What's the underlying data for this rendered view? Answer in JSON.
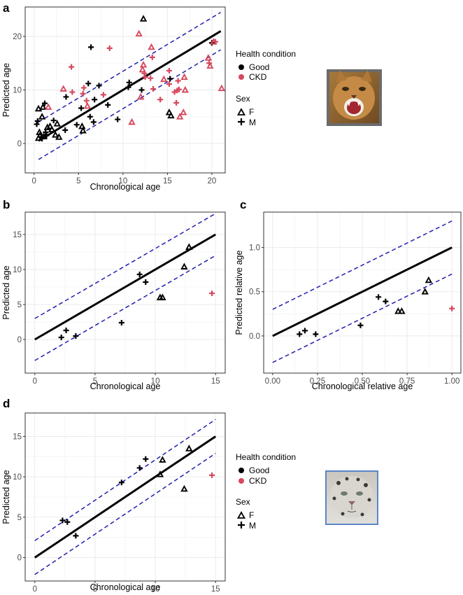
{
  "colors": {
    "good": "#000000",
    "ckd": "#d6495e",
    "band": "#1f1fb0",
    "fit": "#000000",
    "grid": "#ebebeb",
    "frame": "#333333"
  },
  "legend": {
    "health_title": "Health condition",
    "health_items": [
      "Good",
      "CKD"
    ],
    "sex_title": "Sex",
    "sex_items": [
      "F",
      "M"
    ]
  },
  "images": [
    {
      "name": "cat-photo",
      "border": "#6b6b6b"
    },
    {
      "name": "snow-leopard-photo",
      "border": "#5a86c8"
    }
  ],
  "chart_data": [
    {
      "panel": "a",
      "type": "scatter",
      "xlabel": "Chronological age",
      "ylabel": "Predicted age",
      "xlim": [
        -1,
        21.5
      ],
      "ylim": [
        -5.5,
        25.5
      ],
      "xticks": [
        0,
        5,
        10,
        15,
        20
      ],
      "xticklabels": [
        "0",
        "5",
        "10",
        "15",
        "20"
      ],
      "yticks": [
        0,
        10,
        20
      ],
      "yticklabels": [
        "0",
        "10",
        "20"
      ],
      "fit_line": {
        "x": [
          0.5,
          21
        ],
        "y": [
          0.5,
          21
        ]
      },
      "band_offset": 3.5,
      "points": [
        {
          "x": 0.3,
          "y": 3.6,
          "sex": "M",
          "health": "Good"
        },
        {
          "x": 0.4,
          "y": 4.2,
          "sex": "M",
          "health": "Good"
        },
        {
          "x": 0.5,
          "y": 6.5,
          "sex": "F",
          "health": "Good"
        },
        {
          "x": 0.6,
          "y": 2.1,
          "sex": "F",
          "health": "Good"
        },
        {
          "x": 0.5,
          "y": 1.0,
          "sex": "F",
          "health": "Good"
        },
        {
          "x": 0.7,
          "y": 1.6,
          "sex": "F",
          "health": "Good"
        },
        {
          "x": 0.8,
          "y": 1.2,
          "sex": "M",
          "health": "Good"
        },
        {
          "x": 0.9,
          "y": 0.9,
          "sex": "M",
          "health": "Good"
        },
        {
          "x": 0.9,
          "y": 5.0,
          "sex": "F",
          "health": "Good"
        },
        {
          "x": 1.0,
          "y": 6.8,
          "sex": "F",
          "health": "Good"
        },
        {
          "x": 1.1,
          "y": 1.3,
          "sex": "F",
          "health": "Good"
        },
        {
          "x": 1.2,
          "y": 7.5,
          "sex": "M",
          "health": "Good"
        },
        {
          "x": 1.3,
          "y": 2.1,
          "sex": "M",
          "health": "Good"
        },
        {
          "x": 1.4,
          "y": 1.5,
          "sex": "M",
          "health": "Good"
        },
        {
          "x": 1.5,
          "y": 3.0,
          "sex": "F",
          "health": "Good"
        },
        {
          "x": 1.6,
          "y": 6.8,
          "sex": "F",
          "health": "CKD"
        },
        {
          "x": 1.8,
          "y": 3.2,
          "sex": "F",
          "health": "Good"
        },
        {
          "x": 2.0,
          "y": 2.6,
          "sex": "F",
          "health": "Good"
        },
        {
          "x": 2.2,
          "y": 4.3,
          "sex": "M",
          "health": "Good"
        },
        {
          "x": 2.4,
          "y": 1.6,
          "sex": "F",
          "health": "Good"
        },
        {
          "x": 2.6,
          "y": 3.7,
          "sex": "F",
          "health": "Good"
        },
        {
          "x": 2.8,
          "y": 1.2,
          "sex": "F",
          "health": "Good"
        },
        {
          "x": 3.3,
          "y": 10.2,
          "sex": "F",
          "health": "CKD"
        },
        {
          "x": 3.5,
          "y": 2.5,
          "sex": "M",
          "health": "Good"
        },
        {
          "x": 3.6,
          "y": 8.7,
          "sex": "M",
          "health": "Good"
        },
        {
          "x": 4.2,
          "y": 14.3,
          "sex": "M",
          "health": "CKD"
        },
        {
          "x": 4.3,
          "y": 9.6,
          "sex": "M",
          "health": "CKD"
        },
        {
          "x": 4.8,
          "y": 3.5,
          "sex": "M",
          "health": "Good"
        },
        {
          "x": 5.3,
          "y": 6.6,
          "sex": "M",
          "health": "Good"
        },
        {
          "x": 5.4,
          "y": 3.2,
          "sex": "F",
          "health": "Good"
        },
        {
          "x": 5.5,
          "y": 2.4,
          "sex": "F",
          "health": "Good"
        },
        {
          "x": 5.5,
          "y": 9.3,
          "sex": "M",
          "health": "CKD"
        },
        {
          "x": 5.6,
          "y": 10.4,
          "sex": "M",
          "health": "CKD"
        },
        {
          "x": 5.9,
          "y": 8.0,
          "sex": "M",
          "health": "CKD"
        },
        {
          "x": 6.0,
          "y": 7.0,
          "sex": "F",
          "health": "CKD"
        },
        {
          "x": 6.1,
          "y": 11.2,
          "sex": "M",
          "health": "Good"
        },
        {
          "x": 6.4,
          "y": 18.0,
          "sex": "M",
          "health": "Good"
        },
        {
          "x": 6.3,
          "y": 5.0,
          "sex": "M",
          "health": "Good"
        },
        {
          "x": 6.7,
          "y": 4.0,
          "sex": "M",
          "health": "Good"
        },
        {
          "x": 6.8,
          "y": 8.2,
          "sex": "M",
          "health": "Good"
        },
        {
          "x": 7.3,
          "y": 10.8,
          "sex": "M",
          "health": "Good"
        },
        {
          "x": 7.8,
          "y": 9.1,
          "sex": "M",
          "health": "CKD"
        },
        {
          "x": 8.3,
          "y": 7.2,
          "sex": "M",
          "health": "Good"
        },
        {
          "x": 8.5,
          "y": 17.8,
          "sex": "M",
          "health": "CKD"
        },
        {
          "x": 9.4,
          "y": 4.5,
          "sex": "M",
          "health": "Good"
        },
        {
          "x": 10.6,
          "y": 10.5,
          "sex": "M",
          "health": "Good"
        },
        {
          "x": 10.7,
          "y": 11.4,
          "sex": "M",
          "health": "Good"
        },
        {
          "x": 11.0,
          "y": 4.0,
          "sex": "F",
          "health": "CKD"
        },
        {
          "x": 11.8,
          "y": 20.5,
          "sex": "F",
          "health": "CKD"
        },
        {
          "x": 12.0,
          "y": 8.7,
          "sex": "F",
          "health": "CKD"
        },
        {
          "x": 12.1,
          "y": 10.0,
          "sex": "M",
          "health": "Good"
        },
        {
          "x": 12.3,
          "y": 14.7,
          "sex": "F",
          "health": "CKD"
        },
        {
          "x": 12.2,
          "y": 13.8,
          "sex": "F",
          "health": "CKD"
        },
        {
          "x": 12.4,
          "y": 13.1,
          "sex": "M",
          "health": "CKD"
        },
        {
          "x": 12.5,
          "y": 12.4,
          "sex": "M",
          "health": "CKD"
        },
        {
          "x": 12.3,
          "y": 23.3,
          "sex": "F",
          "health": "Good"
        },
        {
          "x": 13.2,
          "y": 18.0,
          "sex": "F",
          "health": "CKD"
        },
        {
          "x": 13.3,
          "y": 16.1,
          "sex": "M",
          "health": "CKD"
        },
        {
          "x": 13.1,
          "y": 12.2,
          "sex": "M",
          "health": "CKD"
        },
        {
          "x": 13.4,
          "y": 10.2,
          "sex": "M",
          "health": "CKD"
        },
        {
          "x": 14.2,
          "y": 8.2,
          "sex": "M",
          "health": "CKD"
        },
        {
          "x": 14.6,
          "y": 12.0,
          "sex": "F",
          "health": "CKD"
        },
        {
          "x": 15.2,
          "y": 13.6,
          "sex": "M",
          "health": "CKD"
        },
        {
          "x": 15.2,
          "y": 11.1,
          "sex": "M",
          "health": "CKD"
        },
        {
          "x": 15.3,
          "y": 12.1,
          "sex": "M",
          "health": "Good"
        },
        {
          "x": 15.2,
          "y": 5.8,
          "sex": "F",
          "health": "Good"
        },
        {
          "x": 15.4,
          "y": 5.2,
          "sex": "F",
          "health": "Good"
        },
        {
          "x": 15.8,
          "y": 9.6,
          "sex": "M",
          "health": "CKD"
        },
        {
          "x": 16.0,
          "y": 7.6,
          "sex": "M",
          "health": "CKD"
        },
        {
          "x": 16.1,
          "y": 9.9,
          "sex": "M",
          "health": "CKD"
        },
        {
          "x": 16.2,
          "y": 11.7,
          "sex": "M",
          "health": "CKD"
        },
        {
          "x": 16.3,
          "y": 10.1,
          "sex": "M",
          "health": "CKD"
        },
        {
          "x": 16.4,
          "y": 5.0,
          "sex": "F",
          "health": "CKD"
        },
        {
          "x": 16.8,
          "y": 5.8,
          "sex": "F",
          "health": "CKD"
        },
        {
          "x": 16.9,
          "y": 12.4,
          "sex": "F",
          "health": "CKD"
        },
        {
          "x": 17.0,
          "y": 10.0,
          "sex": "F",
          "health": "CKD"
        },
        {
          "x": 19.6,
          "y": 16.0,
          "sex": "F",
          "health": "CKD"
        },
        {
          "x": 19.7,
          "y": 15.0,
          "sex": "M",
          "health": "CKD"
        },
        {
          "x": 19.8,
          "y": 14.5,
          "sex": "F",
          "health": "CKD"
        },
        {
          "x": 20.0,
          "y": 18.8,
          "sex": "M",
          "health": "Good"
        },
        {
          "x": 20.2,
          "y": 19.0,
          "sex": "F",
          "health": "CKD"
        },
        {
          "x": 20.4,
          "y": 19.0,
          "sex": "M",
          "health": "CKD"
        },
        {
          "x": 21.1,
          "y": 10.3,
          "sex": "F",
          "health": "CKD"
        }
      ]
    },
    {
      "panel": "b",
      "type": "scatter",
      "xlabel": "Chronological age",
      "ylabel": "Predicted age",
      "xlim": [
        -0.8,
        15.8
      ],
      "ylim": [
        -4.8,
        18.2
      ],
      "xticks": [
        0,
        5,
        10,
        15
      ],
      "xticklabels": [
        "0",
        "5",
        "10",
        "15"
      ],
      "yticks": [
        0,
        5,
        10,
        15
      ],
      "yticklabels": [
        "0",
        "5",
        "10",
        "15"
      ],
      "fit_line": {
        "x": [
          0,
          15
        ],
        "y": [
          0,
          15
        ]
      },
      "band_offset": 3.0,
      "points": [
        {
          "x": 2.2,
          "y": 0.3,
          "sex": "M",
          "health": "Good"
        },
        {
          "x": 2.6,
          "y": 1.3,
          "sex": "M",
          "health": "Good"
        },
        {
          "x": 3.4,
          "y": 0.5,
          "sex": "M",
          "health": "Good"
        },
        {
          "x": 7.2,
          "y": 2.4,
          "sex": "M",
          "health": "Good"
        },
        {
          "x": 8.7,
          "y": 9.3,
          "sex": "M",
          "health": "Good"
        },
        {
          "x": 9.2,
          "y": 8.2,
          "sex": "M",
          "health": "Good"
        },
        {
          "x": 10.4,
          "y": 6.0,
          "sex": "F",
          "health": "Good"
        },
        {
          "x": 10.6,
          "y": 6.0,
          "sex": "F",
          "health": "Good"
        },
        {
          "x": 12.4,
          "y": 10.4,
          "sex": "F",
          "health": "Good"
        },
        {
          "x": 12.8,
          "y": 13.2,
          "sex": "F",
          "health": "Good"
        },
        {
          "x": 14.7,
          "y": 6.6,
          "sex": "M",
          "health": "CKD"
        }
      ]
    },
    {
      "panel": "c",
      "type": "scatter",
      "xlabel": "Chronological relative age",
      "ylabel": "Predicted relative age",
      "xlim": [
        -0.05,
        1.05
      ],
      "ylim": [
        -0.42,
        1.4
      ],
      "xticks": [
        0,
        0.25,
        0.5,
        0.75,
        1.0
      ],
      "xticklabels": [
        "0.00",
        "0.25",
        "0.50",
        "0.75",
        "1.00"
      ],
      "yticks": [
        0,
        0.5,
        1.0
      ],
      "yticklabels": [
        "0.0",
        "0.5",
        "1.0"
      ],
      "fit_line": {
        "x": [
          0,
          1
        ],
        "y": [
          0,
          1
        ]
      },
      "band_offset": 0.3,
      "points": [
        {
          "x": 0.15,
          "y": 0.02,
          "sex": "M",
          "health": "Good"
        },
        {
          "x": 0.18,
          "y": 0.06,
          "sex": "M",
          "health": "Good"
        },
        {
          "x": 0.24,
          "y": 0.02,
          "sex": "M",
          "health": "Good"
        },
        {
          "x": 0.49,
          "y": 0.12,
          "sex": "M",
          "health": "Good"
        },
        {
          "x": 0.59,
          "y": 0.44,
          "sex": "M",
          "health": "Good"
        },
        {
          "x": 0.63,
          "y": 0.39,
          "sex": "M",
          "health": "Good"
        },
        {
          "x": 0.7,
          "y": 0.28,
          "sex": "F",
          "health": "Good"
        },
        {
          "x": 0.72,
          "y": 0.28,
          "sex": "F",
          "health": "Good"
        },
        {
          "x": 0.85,
          "y": 0.5,
          "sex": "F",
          "health": "Good"
        },
        {
          "x": 0.87,
          "y": 0.63,
          "sex": "F",
          "health": "Good"
        },
        {
          "x": 1.0,
          "y": 0.31,
          "sex": "M",
          "health": "CKD"
        }
      ]
    },
    {
      "panel": "d",
      "type": "scatter",
      "xlabel": "Chronological age",
      "ylabel": "Predicted age",
      "xlim": [
        -0.8,
        15.8
      ],
      "ylim": [
        -2.9,
        17.9
      ],
      "xticks": [
        0,
        5,
        10,
        15
      ],
      "xticklabels": [
        "0",
        "5",
        "10",
        "15"
      ],
      "yticks": [
        0,
        5,
        10,
        15
      ],
      "yticklabels": [
        "0",
        "5",
        "10",
        "15"
      ],
      "fit_line": {
        "x": [
          0,
          15
        ],
        "y": [
          0,
          15
        ]
      },
      "band_offset": 2.1,
      "points": [
        {
          "x": 2.3,
          "y": 4.6,
          "sex": "M",
          "health": "Good"
        },
        {
          "x": 2.7,
          "y": 4.4,
          "sex": "M",
          "health": "Good"
        },
        {
          "x": 3.4,
          "y": 2.7,
          "sex": "M",
          "health": "Good"
        },
        {
          "x": 7.2,
          "y": 9.3,
          "sex": "M",
          "health": "Good"
        },
        {
          "x": 8.7,
          "y": 11.1,
          "sex": "M",
          "health": "Good"
        },
        {
          "x": 9.2,
          "y": 12.2,
          "sex": "M",
          "health": "Good"
        },
        {
          "x": 10.4,
          "y": 10.3,
          "sex": "F",
          "health": "Good"
        },
        {
          "x": 10.6,
          "y": 12.1,
          "sex": "F",
          "health": "Good"
        },
        {
          "x": 12.4,
          "y": 8.5,
          "sex": "F",
          "health": "Good"
        },
        {
          "x": 12.8,
          "y": 13.5,
          "sex": "F",
          "health": "Good"
        },
        {
          "x": 14.7,
          "y": 10.2,
          "sex": "M",
          "health": "CKD"
        }
      ]
    }
  ]
}
